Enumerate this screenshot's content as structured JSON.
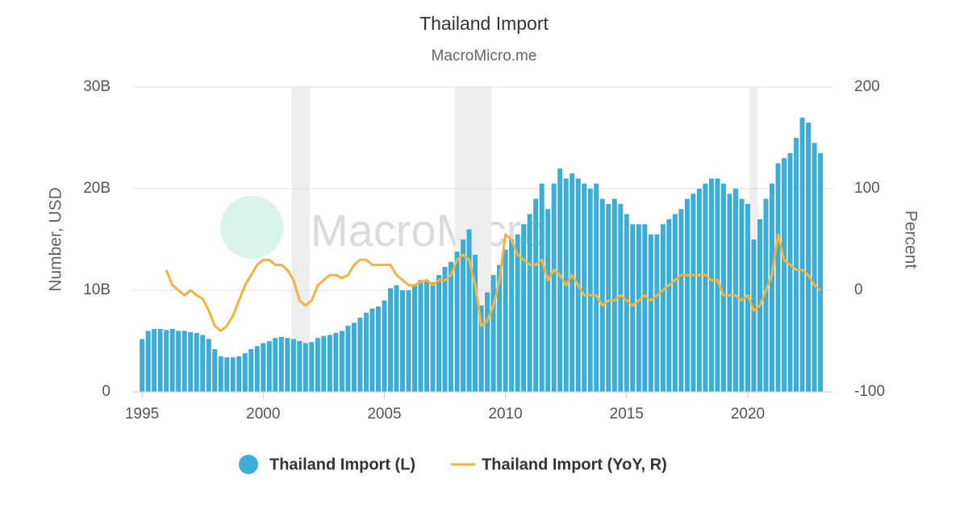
{
  "chart_data": {
    "type": "bar-line",
    "title": "Thailand Import",
    "subtitle": "MacroMicro.me",
    "watermark": "MacroMicro",
    "y_label": "Number, USD",
    "y2_label": "Percent",
    "xlim": [
      1994.63,
      2023.53
    ],
    "xticks": [
      1995,
      2000,
      2005,
      2010,
      2015,
      2020
    ],
    "ylim": [
      0,
      30
    ],
    "yticks": [
      0,
      {
        "value": 10,
        "label": "10B"
      },
      {
        "value": 20,
        "label": "20B"
      },
      {
        "value": 30,
        "label": "30B"
      }
    ],
    "y2lim": [
      -100,
      200
    ],
    "y2ticks": [
      -100,
      0,
      100,
      200
    ],
    "grid": true,
    "shaded_ranges": [
      [
        2001.17,
        2001.92
      ],
      [
        2007.92,
        2009.42
      ],
      [
        2020.08,
        2020.42
      ]
    ],
    "x": [
      1995,
      1995.25,
      1995.5,
      1995.75,
      1996,
      1996.25,
      1996.5,
      1996.75,
      1997,
      1997.25,
      1997.5,
      1997.75,
      1998,
      1998.25,
      1998.5,
      1998.75,
      1999,
      1999.25,
      1999.5,
      1999.75,
      2000,
      2000.25,
      2000.5,
      2000.75,
      2001,
      2001.25,
      2001.5,
      2001.75,
      2002,
      2002.25,
      2002.5,
      2002.75,
      2003,
      2003.25,
      2003.5,
      2003.75,
      2004,
      2004.25,
      2004.5,
      2004.75,
      2005,
      2005.25,
      2005.5,
      2005.75,
      2006,
      2006.25,
      2006.5,
      2006.75,
      2007,
      2007.25,
      2007.5,
      2007.75,
      2008,
      2008.25,
      2008.5,
      2008.75,
      2009,
      2009.25,
      2009.5,
      2009.75,
      2010,
      2010.25,
      2010.5,
      2010.75,
      2011,
      2011.25,
      2011.5,
      2011.75,
      2012,
      2012.25,
      2012.5,
      2012.75,
      2013,
      2013.25,
      2013.5,
      2013.75,
      2014,
      2014.25,
      2014.5,
      2014.75,
      2015,
      2015.25,
      2015.5,
      2015.75,
      2016,
      2016.25,
      2016.5,
      2016.75,
      2017,
      2017.25,
      2017.5,
      2017.75,
      2018,
      2018.25,
      2018.5,
      2018.75,
      2019,
      2019.25,
      2019.5,
      2019.75,
      2020,
      2020.25,
      2020.5,
      2020.75,
      2021,
      2021.25,
      2021.5,
      2021.75,
      2022,
      2022.25,
      2022.5,
      2022.75,
      2023
    ],
    "series": [
      {
        "name": "Thailand Import (L)",
        "color": "#3aaed8",
        "axis": "y",
        "values": [
          5.2,
          6.0,
          6.2,
          6.2,
          6.1,
          6.2,
          6.0,
          6.0,
          5.9,
          5.8,
          5.6,
          5.2,
          4.2,
          3.5,
          3.4,
          3.4,
          3.5,
          3.8,
          4.2,
          4.5,
          4.8,
          5.0,
          5.3,
          5.4,
          5.3,
          5.2,
          5.0,
          4.8,
          4.9,
          5.3,
          5.5,
          5.6,
          5.8,
          6.0,
          6.5,
          6.8,
          7.3,
          7.8,
          8.2,
          8.4,
          9.0,
          10.2,
          10.5,
          10.0,
          10.0,
          10.5,
          11.0,
          11.0,
          10.8,
          11.5,
          12.3,
          12.8,
          13.8,
          15.0,
          16.0,
          13.5,
          8.5,
          9.8,
          11.5,
          12.5,
          14.0,
          15.0,
          15.5,
          16.5,
          17.5,
          19.0,
          20.5,
          18.0,
          20.5,
          22.0,
          21.0,
          21.5,
          21.0,
          20.5,
          20.0,
          20.5,
          19.0,
          18.5,
          19.0,
          18.5,
          17.5,
          16.5,
          16.5,
          16.5,
          15.5,
          15.5,
          16.5,
          17.0,
          17.5,
          18.0,
          19.0,
          19.5,
          20.0,
          20.5,
          21.0,
          21.0,
          20.5,
          19.5,
          20.0,
          19.0,
          18.5,
          15.0,
          17.0,
          19.0,
          20.5,
          22.5,
          23.0,
          23.5,
          25.0,
          27.0,
          26.5,
          24.5,
          23.5
        ]
      },
      {
        "name": "Thailand Import (YoY, R)",
        "color": "#f3b33d",
        "axis": "y2",
        "values": [
          null,
          null,
          null,
          null,
          20,
          5,
          0,
          -5,
          0,
          -5,
          -8,
          -20,
          -35,
          -40,
          -35,
          -25,
          -10,
          5,
          15,
          25,
          30,
          30,
          25,
          25,
          20,
          10,
          -10,
          -15,
          -10,
          5,
          10,
          15,
          15,
          12,
          15,
          25,
          30,
          30,
          25,
          25,
          25,
          25,
          15,
          10,
          5,
          5,
          8,
          10,
          5,
          10,
          10,
          15,
          30,
          35,
          30,
          5,
          -35,
          -30,
          -15,
          10,
          55,
          50,
          35,
          30,
          25,
          25,
          30,
          10,
          20,
          15,
          5,
          15,
          5,
          -5,
          -5,
          -5,
          -15,
          -10,
          -10,
          -5,
          -10,
          -15,
          -10,
          -5,
          -10,
          -5,
          0,
          5,
          10,
          15,
          15,
          15,
          15,
          15,
          10,
          10,
          -5,
          -5,
          -5,
          -10,
          -5,
          -20,
          -15,
          0,
          15,
          55,
          30,
          25,
          20,
          20,
          15,
          5,
          0
        ]
      }
    ]
  }
}
